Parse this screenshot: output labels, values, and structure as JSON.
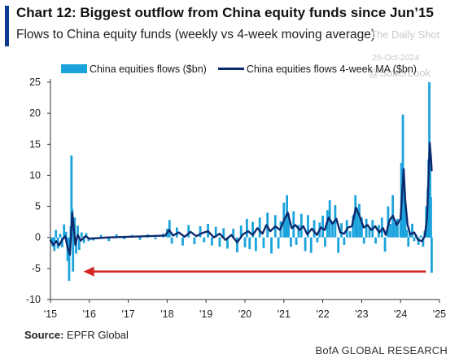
{
  "header": {
    "title": "Chart 12: Biggest outflow from China equity funds since Jun’15",
    "subtitle": "Flows to China equity funds (weekly vs 4-week moving average)"
  },
  "watermark": {
    "line1": "The Daily Shot",
    "line2": "25-Oct-2024",
    "line3": "@SoberLook"
  },
  "footer": {
    "source_label": "Source:",
    "source_text": "EPFR Global",
    "brand": "BofA GLOBAL RESEARCH"
  },
  "colors": {
    "bars": "#1ba3dc",
    "ma_line": "#0b2a6e",
    "arrow": "#d42323",
    "accent": "#0a3a94"
  },
  "chart_data": {
    "type": "bar",
    "title": "Chart 12: Biggest outflow from China equity funds since Jun’15",
    "subtitle": "Flows to China equity funds (weekly vs 4-week moving average)",
    "xlabel": "",
    "ylabel": "",
    "ylim": [
      -10,
      25
    ],
    "xlim": [
      2015.0,
      2025.0
    ],
    "yticks": [
      25,
      20,
      15,
      10,
      5,
      0,
      -5,
      -10
    ],
    "xticks": [
      {
        "value": 2015.0,
        "label": "'15"
      },
      {
        "value": 2016.0,
        "label": "'16"
      },
      {
        "value": 2017.0,
        "label": "'17"
      },
      {
        "value": 2018.0,
        "label": "'18"
      },
      {
        "value": 2019.0,
        "label": "'19"
      },
      {
        "value": 2020.0,
        "label": "'20"
      },
      {
        "value": 2021.0,
        "label": "'21"
      },
      {
        "value": 2022.0,
        "label": "'22"
      },
      {
        "value": 2023.0,
        "label": "'23"
      },
      {
        "value": 2024.0,
        "label": "'24"
      },
      {
        "value": 2025.0,
        "label": "'25"
      }
    ],
    "legend": {
      "placement": "top",
      "entries": [
        "China equities flows ($bn)",
        "China equities flows 4-week MA ($bn)"
      ]
    },
    "grid": false,
    "frequency": "weekly",
    "series": [
      {
        "name": "China equities flows ($bn)",
        "kind": "bar",
        "points": [
          [
            2015.02,
            -0.8
          ],
          [
            2015.06,
            -1.5
          ],
          [
            2015.1,
            -2.2
          ],
          [
            2015.14,
            1.2
          ],
          [
            2015.19,
            -1.8
          ],
          [
            2015.25,
            0.6
          ],
          [
            2015.3,
            -1.6
          ],
          [
            2015.35,
            2.1
          ],
          [
            2015.4,
            0.9
          ],
          [
            2015.44,
            -3.8
          ],
          [
            2015.48,
            -7.0
          ],
          [
            2015.52,
            1.8
          ],
          [
            2015.54,
            13.2
          ],
          [
            2015.56,
            4.6
          ],
          [
            2015.58,
            -5.5
          ],
          [
            2015.62,
            3.2
          ],
          [
            2015.66,
            -2.6
          ],
          [
            2015.7,
            1.9
          ],
          [
            2015.74,
            -2.0
          ],
          [
            2015.8,
            0.8
          ],
          [
            2015.86,
            -0.9
          ],
          [
            2015.92,
            0.7
          ],
          [
            2015.98,
            -0.6
          ],
          [
            2016.1,
            -0.5
          ],
          [
            2016.3,
            0.4
          ],
          [
            2016.5,
            -0.6
          ],
          [
            2016.7,
            0.5
          ],
          [
            2016.9,
            -0.3
          ],
          [
            2017.1,
            0.4
          ],
          [
            2017.3,
            -0.4
          ],
          [
            2017.5,
            0.5
          ],
          [
            2017.7,
            -0.3
          ],
          [
            2017.9,
            0.6
          ],
          [
            2018.0,
            1.4
          ],
          [
            2018.06,
            2.8
          ],
          [
            2018.12,
            -1.0
          ],
          [
            2018.25,
            1.6
          ],
          [
            2018.4,
            -1.3
          ],
          [
            2018.55,
            2.0
          ],
          [
            2018.7,
            -1.1
          ],
          [
            2018.85,
            1.8
          ],
          [
            2018.95,
            -0.8
          ],
          [
            2019.05,
            2.2
          ],
          [
            2019.15,
            -1.3
          ],
          [
            2019.25,
            1.7
          ],
          [
            2019.35,
            -1.5
          ],
          [
            2019.45,
            1.5
          ],
          [
            2019.55,
            -1.8
          ],
          [
            2019.7,
            1.4
          ],
          [
            2019.8,
            -2.4
          ],
          [
            2019.9,
            1.9
          ],
          [
            2020.0,
            -1.6
          ],
          [
            2020.05,
            3.0
          ],
          [
            2020.12,
            -1.9
          ],
          [
            2020.2,
            2.5
          ],
          [
            2020.28,
            -2.2
          ],
          [
            2020.38,
            3.2
          ],
          [
            2020.48,
            -1.7
          ],
          [
            2020.58,
            4.0
          ],
          [
            2020.68,
            -2.6
          ],
          [
            2020.78,
            3.6
          ],
          [
            2020.86,
            -1.8
          ],
          [
            2020.92,
            2.6
          ],
          [
            2021.0,
            5.6
          ],
          [
            2021.04,
            2.8
          ],
          [
            2021.08,
            6.8
          ],
          [
            2021.12,
            3.8
          ],
          [
            2021.18,
            -1.5
          ],
          [
            2021.25,
            4.2
          ],
          [
            2021.32,
            -1.2
          ],
          [
            2021.38,
            2.0
          ],
          [
            2021.45,
            3.8
          ],
          [
            2021.55,
            -2.2
          ],
          [
            2021.62,
            3.6
          ],
          [
            2021.7,
            -2.5
          ],
          [
            2021.78,
            2.8
          ],
          [
            2021.86,
            -0.8
          ],
          [
            2021.92,
            2.4
          ],
          [
            2022.0,
            3.5
          ],
          [
            2022.06,
            -1.5
          ],
          [
            2022.12,
            4.4
          ],
          [
            2022.18,
            6.0
          ],
          [
            2022.25,
            2.6
          ],
          [
            2022.32,
            5.2
          ],
          [
            2022.4,
            -2.5
          ],
          [
            2022.48,
            2.3
          ],
          [
            2022.55,
            -1.2
          ],
          [
            2022.62,
            2.8
          ],
          [
            2022.7,
            1.0
          ],
          [
            2022.78,
            3.6
          ],
          [
            2022.84,
            6.8
          ],
          [
            2022.88,
            4.8
          ],
          [
            2022.94,
            5.4
          ],
          [
            2023.0,
            3.2
          ],
          [
            2023.06,
            -1.0
          ],
          [
            2023.12,
            3.0
          ],
          [
            2023.2,
            1.5
          ],
          [
            2023.28,
            2.8
          ],
          [
            2023.36,
            -1.0
          ],
          [
            2023.44,
            2.0
          ],
          [
            2023.52,
            3.2
          ],
          [
            2023.6,
            -2.3
          ],
          [
            2023.68,
            5.0
          ],
          [
            2023.74,
            2.2
          ],
          [
            2023.8,
            6.8
          ],
          [
            2023.86,
            2.4
          ],
          [
            2023.92,
            3.0
          ],
          [
            2024.0,
            2.4
          ],
          [
            2024.02,
            12.0
          ],
          [
            2024.04,
            5.6
          ],
          [
            2024.06,
            19.8
          ],
          [
            2024.08,
            11.0
          ],
          [
            2024.1,
            6.5
          ],
          [
            2024.12,
            3.8
          ],
          [
            2024.16,
            1.2
          ],
          [
            2024.2,
            -1.5
          ],
          [
            2024.24,
            0.8
          ],
          [
            2024.3,
            2.2
          ],
          [
            2024.35,
            -0.6
          ],
          [
            2024.4,
            0.5
          ],
          [
            2024.46,
            -1.2
          ],
          [
            2024.52,
            0.3
          ],
          [
            2024.58,
            -1.5
          ],
          [
            2024.62,
            1.0
          ],
          [
            2024.66,
            5.0
          ],
          [
            2024.68,
            2.2
          ],
          [
            2024.7,
            7.8
          ],
          [
            2024.72,
            12.6
          ],
          [
            2024.74,
            25.0
          ],
          [
            2024.76,
            12.0
          ],
          [
            2024.78,
            6.5
          ],
          [
            2024.8,
            -5.7
          ]
        ]
      },
      {
        "name": "China equities flows 4-week MA ($bn)",
        "kind": "line",
        "points": [
          [
            2015.0,
            -0.5
          ],
          [
            2015.08,
            -1.2
          ],
          [
            2015.15,
            -0.6
          ],
          [
            2015.22,
            -1.3
          ],
          [
            2015.3,
            -0.4
          ],
          [
            2015.38,
            0.2
          ],
          [
            2015.44,
            -1.6
          ],
          [
            2015.5,
            -2.8
          ],
          [
            2015.53,
            0.5
          ],
          [
            2015.56,
            4.0
          ],
          [
            2015.6,
            1.5
          ],
          [
            2015.64,
            -1.2
          ],
          [
            2015.7,
            0.4
          ],
          [
            2015.78,
            -0.5
          ],
          [
            2015.9,
            0.2
          ],
          [
            2016.0,
            -0.2
          ],
          [
            2016.5,
            0.0
          ],
          [
            2017.0,
            0.1
          ],
          [
            2017.5,
            0.2
          ],
          [
            2017.95,
            0.3
          ],
          [
            2018.05,
            1.2
          ],
          [
            2018.15,
            0.3
          ],
          [
            2018.3,
            0.8
          ],
          [
            2018.45,
            0.1
          ],
          [
            2018.6,
            0.9
          ],
          [
            2018.75,
            0.2
          ],
          [
            2018.9,
            0.7
          ],
          [
            2019.05,
            1.0
          ],
          [
            2019.2,
            0.0
          ],
          [
            2019.35,
            0.6
          ],
          [
            2019.5,
            -0.4
          ],
          [
            2019.65,
            0.4
          ],
          [
            2019.8,
            -0.8
          ],
          [
            2019.95,
            0.5
          ],
          [
            2020.08,
            1.0
          ],
          [
            2020.2,
            0.4
          ],
          [
            2020.32,
            1.5
          ],
          [
            2020.45,
            0.6
          ],
          [
            2020.55,
            2.0
          ],
          [
            2020.65,
            1.0
          ],
          [
            2020.78,
            1.8
          ],
          [
            2020.9,
            1.2
          ],
          [
            2021.02,
            3.0
          ],
          [
            2021.1,
            4.0
          ],
          [
            2021.2,
            1.5
          ],
          [
            2021.3,
            2.0
          ],
          [
            2021.4,
            1.2
          ],
          [
            2021.5,
            1.8
          ],
          [
            2021.6,
            0.5
          ],
          [
            2021.72,
            1.4
          ],
          [
            2021.85,
            0.4
          ],
          [
            2021.95,
            1.6
          ],
          [
            2022.05,
            1.2
          ],
          [
            2022.15,
            3.2
          ],
          [
            2022.25,
            2.2
          ],
          [
            2022.35,
            3.0
          ],
          [
            2022.45,
            0.8
          ],
          [
            2022.55,
            0.6
          ],
          [
            2022.65,
            1.6
          ],
          [
            2022.75,
            1.8
          ],
          [
            2022.85,
            4.8
          ],
          [
            2022.95,
            3.4
          ],
          [
            2023.05,
            1.6
          ],
          [
            2023.15,
            2.0
          ],
          [
            2023.25,
            1.2
          ],
          [
            2023.35,
            1.8
          ],
          [
            2023.45,
            0.8
          ],
          [
            2023.55,
            1.5
          ],
          [
            2023.62,
            0.4
          ],
          [
            2023.72,
            2.8
          ],
          [
            2023.8,
            3.5
          ],
          [
            2023.9,
            2.0
          ],
          [
            2024.0,
            3.0
          ],
          [
            2024.04,
            7.0
          ],
          [
            2024.08,
            11.0
          ],
          [
            2024.12,
            6.0
          ],
          [
            2024.18,
            2.0
          ],
          [
            2024.25,
            0.5
          ],
          [
            2024.35,
            0.8
          ],
          [
            2024.45,
            -0.4
          ],
          [
            2024.55,
            -0.6
          ],
          [
            2024.62,
            0.2
          ],
          [
            2024.68,
            3.0
          ],
          [
            2024.72,
            10.0
          ],
          [
            2024.75,
            15.2
          ],
          [
            2024.78,
            13.0
          ],
          [
            2024.8,
            10.8
          ]
        ]
      }
    ],
    "annotations": [
      {
        "type": "arrow",
        "from": [
          2024.65,
          -5.5
        ],
        "to": [
          2015.85,
          -5.5
        ],
        "description": "red arrow pointing back to the mid-2015 outflow"
      }
    ]
  }
}
